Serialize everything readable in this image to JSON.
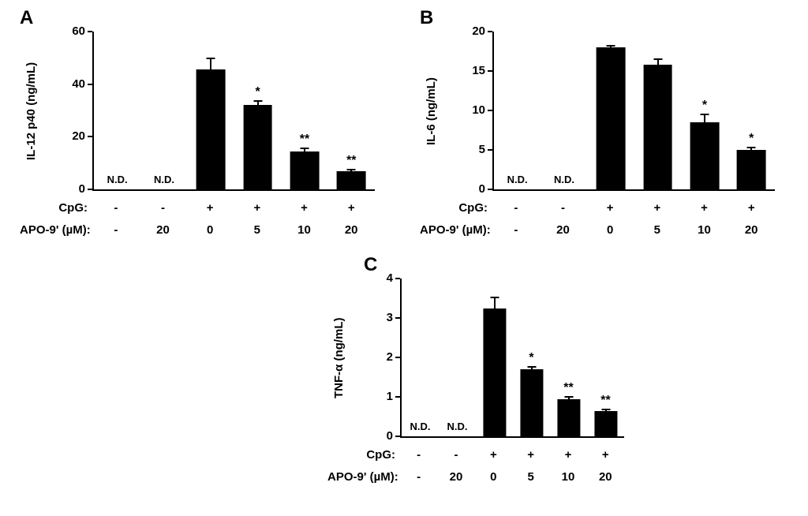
{
  "figure": {
    "kind": "scientific-bar-figure",
    "background": "#ffffff"
  },
  "bar_color": "#000000",
  "x_rows": [
    {
      "label": "CpG:",
      "values": [
        "-",
        "-",
        "+",
        "+",
        "+",
        "+"
      ]
    },
    {
      "label": "APO-9' (µM):",
      "values": [
        "-",
        "20",
        "0",
        "5",
        "10",
        "20"
      ]
    }
  ],
  "chart_data": [
    {
      "type": "bar",
      "panel": "A",
      "title": "",
      "xlabel": "",
      "ylabel": "IL-12 p40 (ng/mL)",
      "ylim": [
        0,
        60
      ],
      "yticks": [
        0,
        20,
        40,
        60
      ],
      "categories": [
        "CpG - / APO-9' -",
        "CpG - / APO-9' 20 µM",
        "CpG + / APO-9' 0",
        "CpG + / APO-9' 5 µM",
        "CpG + / APO-9' 10 µM",
        "CpG + / APO-9' 20 µM"
      ],
      "values": [
        null,
        null,
        45.5,
        32,
        14.5,
        7
      ],
      "errors": [
        null,
        null,
        4.5,
        2,
        1.5,
        0.8
      ],
      "annotations": [
        "N.D.",
        "N.D.",
        "",
        "*",
        "**",
        "**"
      ],
      "grid": false,
      "legend": false
    },
    {
      "type": "bar",
      "panel": "B",
      "title": "",
      "xlabel": "",
      "ylabel": "IL-6 (ng/mL)",
      "ylim": [
        0,
        20
      ],
      "yticks": [
        0,
        5,
        10,
        15,
        20
      ],
      "categories": [
        "CpG - / APO-9' -",
        "CpG - / APO-9' 20 µM",
        "CpG + / APO-9' 0",
        "CpG + / APO-9' 5 µM",
        "CpG + / APO-9' 10 µM",
        "CpG + / APO-9' 20 µM"
      ],
      "values": [
        null,
        null,
        18,
        15.8,
        8.5,
        5
      ],
      "errors": [
        null,
        null,
        0.3,
        0.8,
        1.1,
        0.4
      ],
      "annotations": [
        "N.D.",
        "N.D.",
        "",
        "",
        "*",
        "*"
      ],
      "grid": false,
      "legend": false
    },
    {
      "type": "bar",
      "panel": "C",
      "title": "",
      "xlabel": "",
      "ylabel": "TNF-α (ng/mL)",
      "ylim": [
        0,
        4
      ],
      "yticks": [
        0,
        1,
        2,
        3,
        4
      ],
      "categories": [
        "CpG - / APO-9' -",
        "CpG - / APO-9' 20 µM",
        "CpG + / APO-9' 0",
        "CpG + / APO-9' 5 µM",
        "CpG + / APO-9' 10 µM",
        "CpG + / APO-9' 20 µM"
      ],
      "values": [
        null,
        null,
        3.25,
        1.7,
        0.95,
        0.65
      ],
      "errors": [
        null,
        null,
        0.3,
        0.08,
        0.07,
        0.05
      ],
      "annotations": [
        "N.D.",
        "N.D.",
        "",
        "*",
        "**",
        "**"
      ],
      "grid": false,
      "legend": false
    }
  ]
}
